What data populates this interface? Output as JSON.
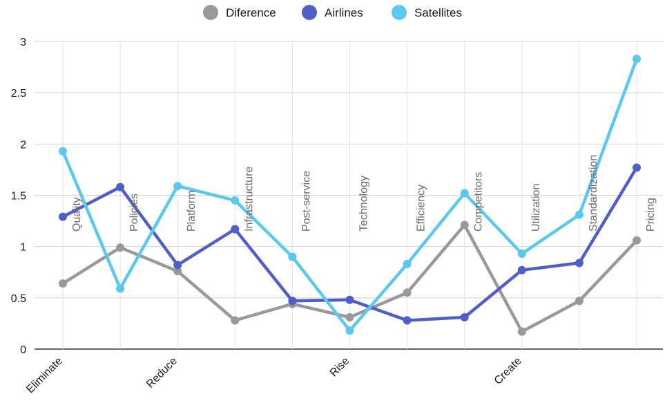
{
  "chart_data": {
    "type": "line",
    "categories": [
      "Quality",
      "Policies",
      "Platform",
      "Infrastructure",
      "Post-service",
      "Technology",
      "Efficiency",
      "Competitors",
      "Utilization",
      "Standardization",
      "Pricing"
    ],
    "groups": [
      {
        "label": "Eliminate",
        "at": 0
      },
      {
        "label": "Reduce",
        "at": 2
      },
      {
        "label": "Rise",
        "at": 5
      },
      {
        "label": "Create",
        "at": 8
      }
    ],
    "series": [
      {
        "name": "Diference",
        "color": "#999999",
        "values": [
          0.64,
          0.99,
          0.76,
          0.28,
          0.44,
          0.31,
          0.55,
          1.21,
          0.17,
          0.47,
          1.06
        ]
      },
      {
        "name": "Airlines",
        "color": "#4f5fc6",
        "values": [
          1.29,
          1.58,
          0.82,
          1.17,
          0.47,
          0.48,
          0.28,
          0.31,
          0.77,
          0.84,
          1.77
        ]
      },
      {
        "name": "Satellites",
        "color": "#5bc8ee",
        "values": [
          1.93,
          0.59,
          1.59,
          1.45,
          0.9,
          0.18,
          0.83,
          1.52,
          0.93,
          1.31,
          2.83
        ]
      }
    ],
    "y_ticks": [
      "0",
      "0.5",
      "1",
      "1.5",
      "2",
      "2.5",
      "3"
    ],
    "ylim": [
      0,
      3
    ],
    "grid": true,
    "legend_position": "top-center",
    "title": "",
    "xlabel": "",
    "ylabel": ""
  }
}
